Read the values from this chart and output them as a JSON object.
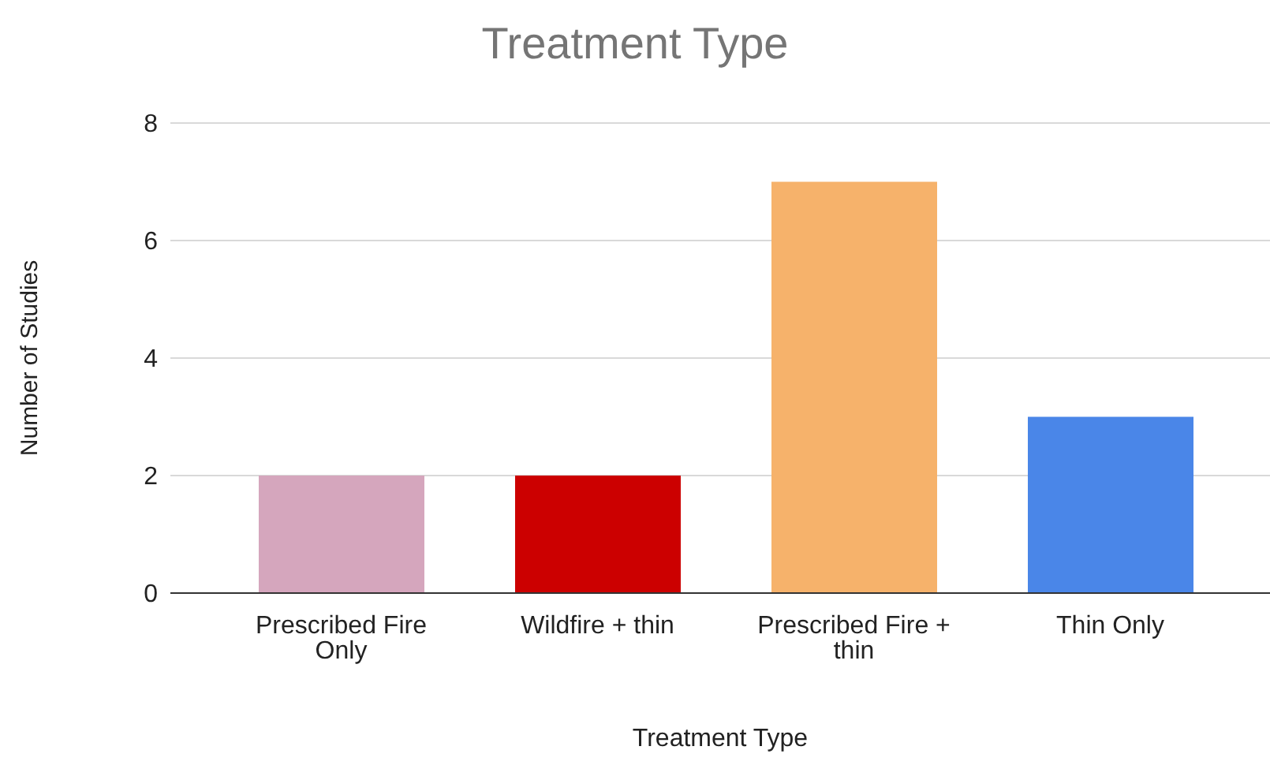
{
  "chart_data": {
    "type": "bar",
    "title": "Treatment Type",
    "xlabel": "Treatment Type",
    "ylabel": "Number of Studies",
    "categories": [
      "Prescribed Fire Only",
      "Wildfire + thin",
      "Prescribed Fire + thin",
      "Thin Only"
    ],
    "values": [
      2,
      2,
      7,
      3
    ],
    "colors": [
      "#d5a6bd",
      "#cc0000",
      "#f6b26b",
      "#4a86e8"
    ],
    "ylim": [
      0,
      8
    ],
    "yticks": [
      0,
      2,
      4,
      6,
      8
    ],
    "grid": "y",
    "legend": false
  }
}
